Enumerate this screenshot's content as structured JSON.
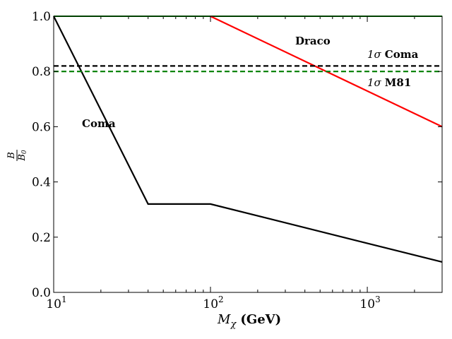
{
  "chart_data": {
    "type": "line",
    "xscale": "log",
    "xlim": [
      10,
      3000
    ],
    "ylim": [
      0.0,
      1.0
    ],
    "xlabel": {
      "symbol": "M",
      "subscript": "χ",
      "unit": "(GeV)"
    },
    "ylabel": {
      "numerator": "B",
      "denominator": "B",
      "denominator_subscript": "0"
    },
    "x_ticks": [
      {
        "value": 10,
        "base": "10",
        "exp": "1"
      },
      {
        "value": 100,
        "base": "10",
        "exp": "2"
      },
      {
        "value": 1000,
        "base": "10",
        "exp": "3"
      }
    ],
    "y_ticks": [
      {
        "value": 0.0,
        "label": "0.0"
      },
      {
        "value": 0.2,
        "label": "0.2"
      },
      {
        "value": 0.4,
        "label": "0.4"
      },
      {
        "value": 0.6,
        "label": "0.6"
      },
      {
        "value": 0.8,
        "label": "0.8"
      },
      {
        "value": 1.0,
        "label": "1.0"
      }
    ],
    "series": [
      {
        "name": "Coma",
        "color": "#000000",
        "style": "solid",
        "x": [
          10,
          40,
          100,
          3000
        ],
        "y": [
          1.0,
          0.32,
          0.32,
          0.11
        ]
      },
      {
        "name": "Draco",
        "color": "#ff0000",
        "style": "solid",
        "x": [
          100,
          3000
        ],
        "y": [
          1.0,
          0.6
        ]
      },
      {
        "name": "1σ Coma",
        "color": "#000000",
        "style": "dashed",
        "x": [
          10,
          3000
        ],
        "y": [
          0.82,
          0.82
        ]
      },
      {
        "name": "1σ M81",
        "color": "#007f00",
        "style": "dashed",
        "x": [
          10,
          3000
        ],
        "y": [
          0.8,
          0.8
        ]
      }
    ],
    "top_line": {
      "color": "#007f00",
      "y": 1.0
    },
    "annotations": [
      {
        "id": "coma",
        "text": "Coma"
      },
      {
        "id": "draco",
        "text": "Draco"
      },
      {
        "id": "coma1s",
        "prefix": "1σ",
        "text": "Coma"
      },
      {
        "id": "m811s",
        "prefix": "1σ",
        "text": "M81"
      }
    ]
  }
}
